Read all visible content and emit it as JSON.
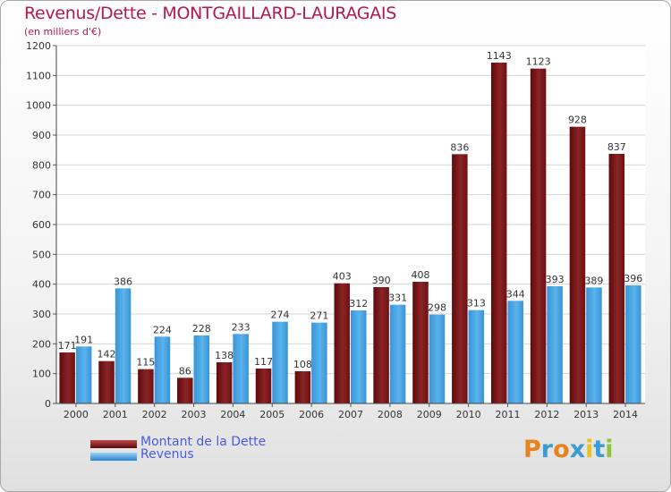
{
  "title": "Revenus/Dette - MONTGAILLARD-LAURAGAIS",
  "subtitle": "(en milliers d'€)",
  "logo": {
    "letters": [
      "P",
      "r",
      "o",
      "x",
      "i",
      "t",
      "i"
    ],
    "colors": [
      "#e8821e",
      "#3a9bd5",
      "#e8821e",
      "#3a9bd5",
      "#e8c21e",
      "#3a9bd5",
      "#8cc43c"
    ]
  },
  "legend": [
    {
      "label": "Montant de la Dette",
      "color": "#7a1014"
    },
    {
      "label": "Revenus",
      "color": "#3e9ee0"
    }
  ],
  "chart_data": {
    "type": "bar",
    "categories": [
      "2000",
      "2001",
      "2002",
      "2003",
      "2004",
      "2005",
      "2006",
      "2007",
      "2008",
      "2009",
      "2010",
      "2011",
      "2012",
      "2013",
      "2014"
    ],
    "series": [
      {
        "name": "Montant de la Dette",
        "color": "#7a1014",
        "values": [
          171,
          142,
          115,
          86,
          138,
          117,
          108,
          403,
          390,
          408,
          836,
          1143,
          1123,
          928,
          837
        ]
      },
      {
        "name": "Revenus",
        "color": "#3e9ee0",
        "values": [
          191,
          386,
          224,
          228,
          233,
          274,
          271,
          312,
          331,
          298,
          313,
          344,
          393,
          389,
          396
        ]
      }
    ],
    "ylim": [
      0,
      1200
    ],
    "yticks": [
      0,
      100,
      200,
      300,
      400,
      500,
      600,
      700,
      800,
      900,
      1000,
      1100,
      1200
    ],
    "grid": true
  }
}
